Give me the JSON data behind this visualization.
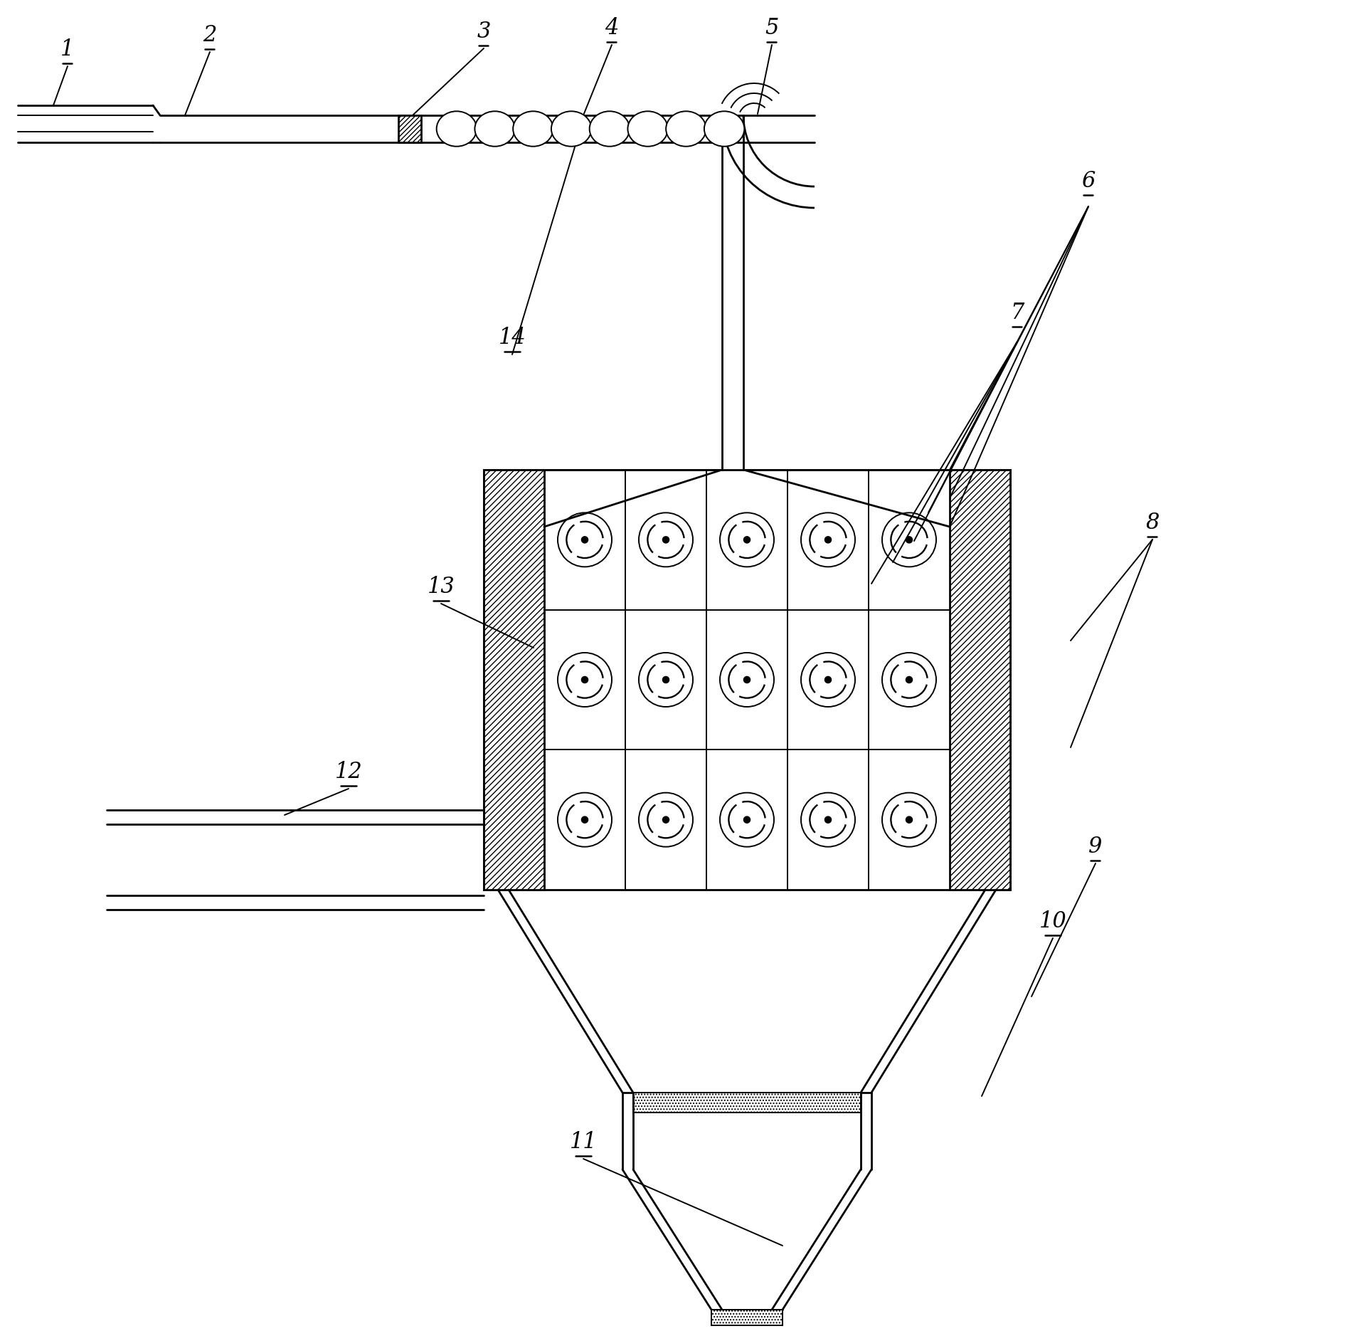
{
  "bg_color": "#ffffff",
  "line_color": "#000000",
  "fig_width": 19.16,
  "fig_height": 18.84,
  "lw": 2.0,
  "lw_thin": 1.4,
  "label_fs": 22
}
